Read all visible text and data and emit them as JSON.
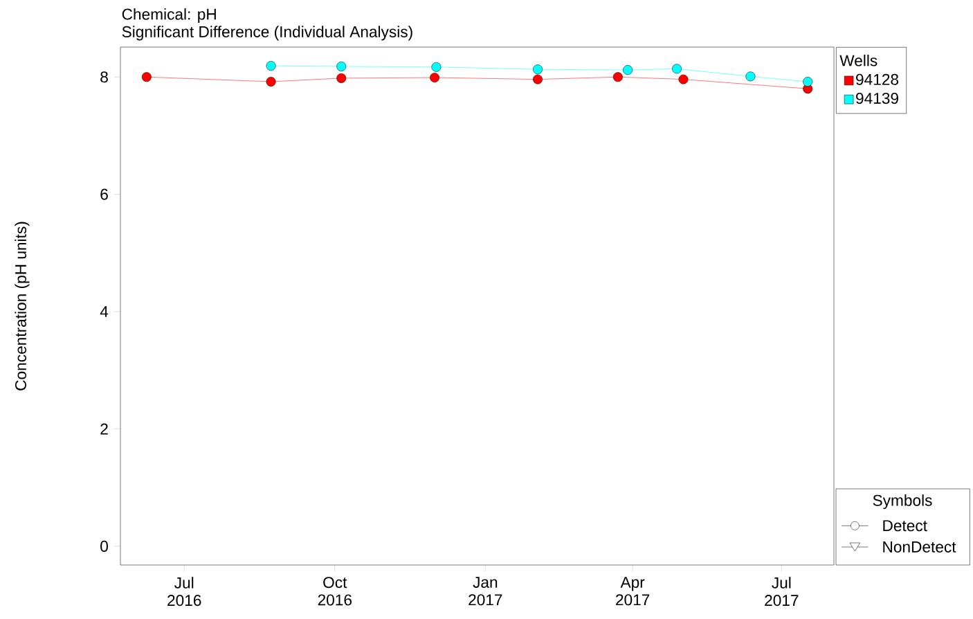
{
  "chart_data": {
    "type": "line",
    "title": "Chemical: pH",
    "subtitle": "Significant Difference (Individual Analysis)",
    "ylabel": "Concentration (pH units)",
    "legend_title": "Wells",
    "series": [
      {
        "name": "94128",
        "color": "#ff0000",
        "x": [
          "2016-06-08",
          "2016-08-23",
          "2016-10-05",
          "2016-12-01",
          "2017-02-02",
          "2017-03-23",
          "2017-05-02",
          "2017-07-17"
        ],
        "values": [
          8.0,
          7.92,
          7.98,
          7.99,
          7.96,
          8.0,
          7.96,
          7.8
        ]
      },
      {
        "name": "94139",
        "color": "#00ffff",
        "x": [
          "2016-08-23",
          "2016-10-05",
          "2016-12-02",
          "2017-02-02",
          "2017-03-29",
          "2017-04-28",
          "2017-06-12",
          "2017-07-17"
        ],
        "values": [
          8.19,
          8.18,
          8.17,
          8.13,
          8.12,
          8.14,
          8.01,
          7.92
        ]
      }
    ],
    "xlim": [
      "2016-05-23",
      "2017-08-02"
    ],
    "ylim": [
      -0.32,
      8.51
    ],
    "xticks": [
      {
        "value": "2016-07-01",
        "label": "Jul 2016"
      },
      {
        "value": "2016-10-01",
        "label": "Oct 2016"
      },
      {
        "value": "2017-01-01",
        "label": "Jan 2017"
      },
      {
        "value": "2017-04-01",
        "label": "Apr 2017"
      },
      {
        "value": "2017-07-01",
        "label": "Jul 2017"
      }
    ],
    "yticks": [
      0,
      2,
      4,
      6,
      8
    ],
    "marker": "circle",
    "line_style": "solid",
    "grid": false,
    "legend": "top right",
    "annotations": [
      "Symbols",
      "Detect",
      "NonDetect"
    ]
  }
}
